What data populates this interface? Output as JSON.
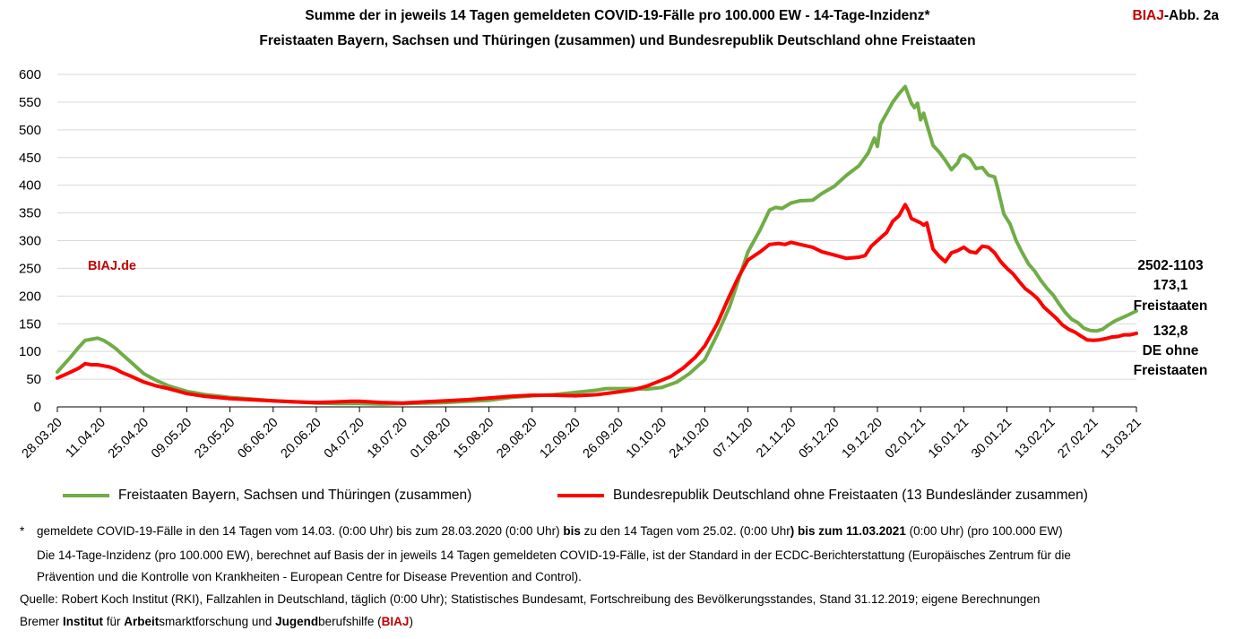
{
  "header": {
    "title_line1": "Summe der in jeweils 14 Tagen gemeldeten COVID-19-Fälle pro 100.000 EW - 14-Tage-Inzidenz*",
    "title_line2": "Freistaaten Bayern, Sachsen und Thüringen (zusammen) und  Bundesrepublik Deutschland ohne Freistaaten",
    "badge_red": "BIAJ",
    "badge_rest": "-Abb. 2a"
  },
  "watermark": "BIAJ.de",
  "end_labels": {
    "date": "2502-1103",
    "value_freistaaten": "173,1",
    "label_freistaaten": "Freistaaten",
    "value_de": "132,8",
    "label_de_1": "DE ohne",
    "label_de_2": "Freistaaten"
  },
  "colors": {
    "green": "#70ad47",
    "red": "#ff0000",
    "accent": "#c00000"
  },
  "legend": {
    "green_label": "Freistaaten Bayern, Sachsen und Thüringen (zusammen)",
    "red_label": "Bundesrepublik Deutschland ohne Freistaaten (13 Bundesländer zusammen)"
  },
  "footnotes": {
    "star": "*",
    "line1_a": "gemeldete COVID-19-Fälle in den 14 Tagen vom 14.03. (0:00 Uhr) bis zum 28.03.2020 (0:00 Uhr) ",
    "line1_b": "bis",
    "line1_c": " zu den 14 Tagen vom 25.02. (0:00 Uhr",
    "line1_d": ") bis zum 11.03.2021",
    "line1_e": " (0:00 Uhr) (pro 100.000 EW)",
    "line2": "Die 14-Tage-Inzidenz (pro 100.000  EW), berechnet auf Basis der in jeweils 14 Tagen gemeldeten COVID-19-Fälle, ist der Standard in der ECDC-Berichterstattung  (Europäisches Zentrum für die",
    "line3": "Prävention und die Kontrolle von Krankheiten  - European Centre for Disease Prevention and Control).",
    "source": "Quelle: Robert Koch Institut (RKI), Fallzahlen in Deutschland, täglich (0:00 Uhr); Statistisches Bundesamt, Fortschreibung des Bevölkerungsstandes, Stand 31.12.2019; eigene Berechnungen",
    "inst_1": "Bremer ",
    "inst_2": "Institut",
    "inst_3": " für ",
    "inst_4": "Arbeit",
    "inst_5": "smarktforschung und ",
    "inst_6": "Jugend",
    "inst_7": "berufshilfe (",
    "inst_8": "BIAJ",
    "inst_9": ")"
  },
  "chart_data": {
    "type": "line",
    "title": "Summe der in jeweils 14 Tagen gemeldeten COVID-19-Fälle pro 100.000 EW - 14-Tage-Inzidenz*",
    "subtitle": "Freistaaten Bayern, Sachsen und Thüringen (zusammen) und  Bundesrepublik Deutschland ohne Freistaaten",
    "xlabel": "",
    "ylabel": "",
    "ylim": [
      0,
      600
    ],
    "yticks": [
      0,
      50,
      100,
      150,
      200,
      250,
      300,
      350,
      400,
      450,
      500,
      550,
      600
    ],
    "xlim": [
      "28.03.20",
      "13.03.21"
    ],
    "xticks": [
      "28.03.20",
      "11.04.20",
      "25.04.20",
      "09.05.20",
      "23.05.20",
      "06.06.20",
      "20.06.20",
      "04.07.20",
      "18.07.20",
      "01.08.20",
      "15.08.20",
      "29.08.20",
      "12.09.20",
      "26.09.20",
      "10.10.20",
      "24.10.20",
      "07.11.20",
      "21.11.20",
      "05.12.20",
      "19.12.20",
      "02.01.21",
      "16.01.21",
      "30.01.21",
      "13.02.21",
      "27.02.21",
      "13.03.21"
    ],
    "grid": "horizontal",
    "legend_position": "bottom",
    "series": [
      {
        "name": "Freistaaten Bayern, Sachsen und Thüringen (zusammen)",
        "color": "#70ad47",
        "points": [
          [
            "28.03.20",
            63
          ],
          [
            "01.04.20",
            88
          ],
          [
            "04.04.20",
            108
          ],
          [
            "06.04.20",
            120
          ],
          [
            "08.04.20",
            122
          ],
          [
            "10.04.20",
            124
          ],
          [
            "12.04.20",
            120
          ],
          [
            "14.04.20",
            113
          ],
          [
            "16.04.20",
            105
          ],
          [
            "18.04.20",
            95
          ],
          [
            "21.04.20",
            80
          ],
          [
            "25.04.20",
            60
          ],
          [
            "29.04.20",
            48
          ],
          [
            "03.05.20",
            38
          ],
          [
            "09.05.20",
            28
          ],
          [
            "15.05.20",
            22
          ],
          [
            "23.05.20",
            17
          ],
          [
            "30.05.20",
            14
          ],
          [
            "06.06.20",
            11
          ],
          [
            "13.06.20",
            9
          ],
          [
            "20.06.20",
            7
          ],
          [
            "27.06.20",
            6
          ],
          [
            "04.07.20",
            6
          ],
          [
            "11.07.20",
            5
          ],
          [
            "18.07.20",
            6
          ],
          [
            "25.07.20",
            7
          ],
          [
            "01.08.20",
            8
          ],
          [
            "08.08.20",
            10
          ],
          [
            "15.08.20",
            12
          ],
          [
            "22.08.20",
            17
          ],
          [
            "29.08.20",
            20
          ],
          [
            "05.09.20",
            22
          ],
          [
            "12.09.20",
            26
          ],
          [
            "19.09.20",
            30
          ],
          [
            "22.09.20",
            33
          ],
          [
            "26.09.20",
            33
          ],
          [
            "01.10.20",
            33
          ],
          [
            "05.10.20",
            32
          ],
          [
            "10.10.20",
            35
          ],
          [
            "15.10.20",
            45
          ],
          [
            "19.10.20",
            60
          ],
          [
            "24.10.20",
            85
          ],
          [
            "28.10.20",
            130
          ],
          [
            "01.11.20",
            180
          ],
          [
            "04.11.20",
            230
          ],
          [
            "07.11.20",
            280
          ],
          [
            "11.11.20",
            320
          ],
          [
            "14.11.20",
            355
          ],
          [
            "16.11.20",
            360
          ],
          [
            "18.11.20",
            358
          ],
          [
            "21.11.20",
            368
          ],
          [
            "24.11.20",
            372
          ],
          [
            "28.11.20",
            373
          ],
          [
            "01.12.20",
            385
          ],
          [
            "05.12.20",
            398
          ],
          [
            "09.12.20",
            418
          ],
          [
            "13.12.20",
            435
          ],
          [
            "16.12.20",
            458
          ],
          [
            "18.12.20",
            485
          ],
          [
            "19.12.20",
            470
          ],
          [
            "20.12.20",
            510
          ],
          [
            "22.12.20",
            530
          ],
          [
            "24.12.20",
            550
          ],
          [
            "26.12.20",
            565
          ],
          [
            "28.12.20",
            578
          ],
          [
            "30.12.20",
            548
          ],
          [
            "31.12.20",
            540
          ],
          [
            "01.01.21",
            548
          ],
          [
            "02.01.21",
            518
          ],
          [
            "03.01.21",
            530
          ],
          [
            "04.01.21",
            510
          ],
          [
            "06.01.21",
            472
          ],
          [
            "08.01.21",
            460
          ],
          [
            "10.01.21",
            445
          ],
          [
            "12.01.21",
            428
          ],
          [
            "14.01.21",
            440
          ],
          [
            "15.01.21",
            452
          ],
          [
            "16.01.21",
            455
          ],
          [
            "18.01.21",
            448
          ],
          [
            "20.01.21",
            430
          ],
          [
            "22.01.21",
            432
          ],
          [
            "24.01.21",
            418
          ],
          [
            "26.01.21",
            415
          ],
          [
            "27.01.21",
            395
          ],
          [
            "29.01.21",
            348
          ],
          [
            "31.01.21",
            330
          ],
          [
            "02.02.21",
            300
          ],
          [
            "04.02.21",
            278
          ],
          [
            "06.02.21",
            258
          ],
          [
            "08.02.21",
            245
          ],
          [
            "10.02.21",
            228
          ],
          [
            "12.02.21",
            214
          ],
          [
            "14.02.21",
            202
          ],
          [
            "16.02.21",
            185
          ],
          [
            "18.02.21",
            170
          ],
          [
            "20.02.21",
            158
          ],
          [
            "22.02.21",
            152
          ],
          [
            "24.02.21",
            142
          ],
          [
            "26.02.21",
            138
          ],
          [
            "28.02.21",
            137
          ],
          [
            "02.03.21",
            140
          ],
          [
            "04.03.21",
            148
          ],
          [
            "06.03.21",
            155
          ],
          [
            "08.03.21",
            160
          ],
          [
            "10.03.21",
            165
          ],
          [
            "13.03.21",
            173.1
          ]
        ]
      },
      {
        "name": "Bundesrepublik Deutschland ohne Freistaaten (13 Bundesländer zusammen)",
        "color": "#ff0000",
        "points": [
          [
            "28.03.20",
            52
          ],
          [
            "01.04.20",
            62
          ],
          [
            "04.04.20",
            70
          ],
          [
            "06.04.20",
            78
          ],
          [
            "08.04.20",
            76
          ],
          [
            "10.04.20",
            76
          ],
          [
            "12.04.20",
            74
          ],
          [
            "14.04.20",
            72
          ],
          [
            "16.04.20",
            68
          ],
          [
            "18.04.20",
            62
          ],
          [
            "21.04.20",
            55
          ],
          [
            "25.04.20",
            45
          ],
          [
            "29.04.20",
            38
          ],
          [
            "03.05.20",
            33
          ],
          [
            "09.05.20",
            24
          ],
          [
            "15.05.20",
            19
          ],
          [
            "23.05.20",
            15
          ],
          [
            "30.05.20",
            13
          ],
          [
            "06.06.20",
            11
          ],
          [
            "13.06.20",
            9
          ],
          [
            "20.06.20",
            8
          ],
          [
            "27.06.20",
            9
          ],
          [
            "01.07.20",
            10
          ],
          [
            "04.07.20",
            10
          ],
          [
            "11.07.20",
            8
          ],
          [
            "18.07.20",
            7
          ],
          [
            "25.07.20",
            9
          ],
          [
            "01.08.20",
            11
          ],
          [
            "08.08.20",
            13
          ],
          [
            "15.08.20",
            16
          ],
          [
            "22.08.20",
            19
          ],
          [
            "29.08.20",
            21
          ],
          [
            "05.09.20",
            21
          ],
          [
            "12.09.20",
            20
          ],
          [
            "19.09.20",
            22
          ],
          [
            "26.09.20",
            27
          ],
          [
            "01.10.20",
            31
          ],
          [
            "05.10.20",
            37
          ],
          [
            "10.10.20",
            48
          ],
          [
            "13.10.20",
            55
          ],
          [
            "17.10.20",
            70
          ],
          [
            "21.10.20",
            90
          ],
          [
            "24.10.20",
            110
          ],
          [
            "28.10.20",
            150
          ],
          [
            "01.11.20",
            200
          ],
          [
            "04.11.20",
            235
          ],
          [
            "07.11.20",
            265
          ],
          [
            "11.11.20",
            280
          ],
          [
            "14.11.20",
            293
          ],
          [
            "17.11.20",
            295
          ],
          [
            "19.11.20",
            293
          ],
          [
            "21.11.20",
            297
          ],
          [
            "24.11.20",
            293
          ],
          [
            "28.11.20",
            288
          ],
          [
            "01.12.20",
            280
          ],
          [
            "05.12.20",
            274
          ],
          [
            "09.12.20",
            268
          ],
          [
            "13.12.20",
            270
          ],
          [
            "15.12.20",
            273
          ],
          [
            "17.12.20",
            290
          ],
          [
            "20.12.20",
            305
          ],
          [
            "22.12.20",
            315
          ],
          [
            "24.12.20",
            335
          ],
          [
            "26.12.20",
            345
          ],
          [
            "28.12.20",
            365
          ],
          [
            "29.12.20",
            355
          ],
          [
            "30.12.20",
            340
          ],
          [
            "02.01.21",
            332
          ],
          [
            "03.01.21",
            328
          ],
          [
            "04.01.21",
            332
          ],
          [
            "06.01.21",
            285
          ],
          [
            "08.01.21",
            272
          ],
          [
            "10.01.21",
            262
          ],
          [
            "12.01.21",
            278
          ],
          [
            "14.01.21",
            282
          ],
          [
            "16.01.21",
            288
          ],
          [
            "18.01.21",
            280
          ],
          [
            "20.01.21",
            278
          ],
          [
            "22.01.21",
            290
          ],
          [
            "24.01.21",
            288
          ],
          [
            "26.01.21",
            278
          ],
          [
            "28.01.21",
            262
          ],
          [
            "30.01.21",
            250
          ],
          [
            "01.02.21",
            240
          ],
          [
            "03.02.21",
            226
          ],
          [
            "05.02.21",
            213
          ],
          [
            "07.02.21",
            205
          ],
          [
            "09.02.21",
            195
          ],
          [
            "11.02.21",
            180
          ],
          [
            "13.02.21",
            170
          ],
          [
            "15.02.21",
            160
          ],
          [
            "17.02.21",
            148
          ],
          [
            "19.02.21",
            140
          ],
          [
            "21.02.21",
            135
          ],
          [
            "23.02.21",
            128
          ],
          [
            "25.02.21",
            121
          ],
          [
            "27.02.21",
            120
          ],
          [
            "01.03.21",
            121
          ],
          [
            "03.03.21",
            123
          ],
          [
            "05.03.21",
            126
          ],
          [
            "07.03.21",
            127
          ],
          [
            "09.03.21",
            130
          ],
          [
            "11.03.21",
            130
          ],
          [
            "13.03.21",
            132.8
          ]
        ]
      }
    ]
  }
}
